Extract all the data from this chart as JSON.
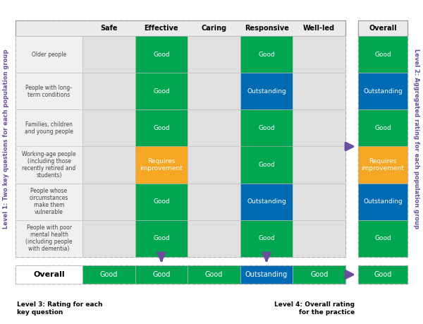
{
  "col_headers": [
    "Safe",
    "Effective",
    "Caring",
    "Responsive",
    "Well-led",
    "Overall"
  ],
  "row_labels": [
    "Older people",
    "People with long-\nterm conditions",
    "Families, children\nand young people",
    "Working-age people\n(including those\nrecently retired and\nstudents)",
    "People whose\ncircumstances\nmake them\nvulnerable",
    "People with poor\nmental health\n(including people\nwith dementia)"
  ],
  "grid_data": [
    [
      "",
      "Good",
      "",
      "Good",
      "",
      "Good"
    ],
    [
      "",
      "Good",
      "",
      "Outstanding",
      "",
      "Outstanding"
    ],
    [
      "",
      "Good",
      "",
      "Good",
      "",
      "Good"
    ],
    [
      "",
      "Requires\nimprovement",
      "",
      "Good",
      "",
      "Requires\nimprovement"
    ],
    [
      "",
      "Good",
      "",
      "Outstanding",
      "",
      "Outstanding"
    ],
    [
      "",
      "Good",
      "",
      "Good",
      "",
      "Good"
    ]
  ],
  "overall_row": [
    "Good",
    "Good",
    "Good",
    "Outstanding",
    "Good",
    "Good"
  ],
  "color_map": {
    "Good": "#00A650",
    "Outstanding": "#006AB3",
    "Requires\nimprovement": "#F5A623",
    "": "#E0E0E0"
  },
  "text_color": "#FFFFFF",
  "level1_label": "Level 1: Two key questions for each population group",
  "level2_label": "Level 2: Aggregated rating for each population group",
  "level3_label": "Level 3: Rating for each\nkey question",
  "level4_label": "Level 4: Overall rating\nfor the practice",
  "arrow_color": "#6B4E9B",
  "background_color": "#FFFFFF"
}
